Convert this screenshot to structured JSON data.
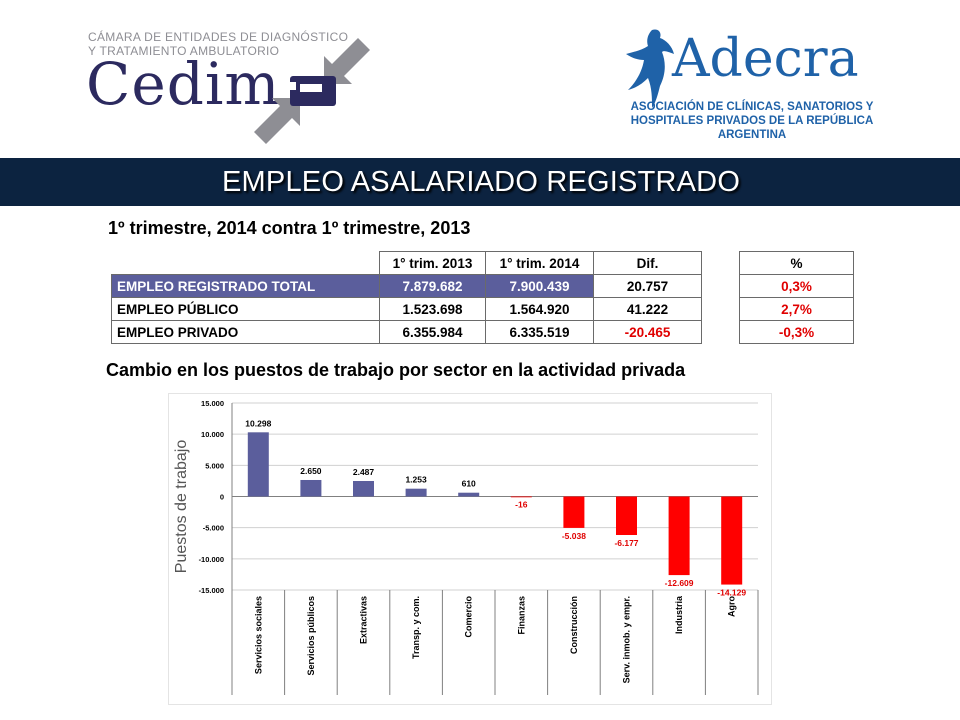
{
  "logos": {
    "cedim": {
      "line1": "CÁMARA DE ENTIDADES DE DIAGNÓSTICO",
      "line2": "Y TRATAMIENTO AMBULATORIO",
      "name": "Cedim"
    },
    "adecra": {
      "name": "Adecra",
      "line1": "ASOCIACIÓN DE CLÍNICAS, SANATORIOS Y",
      "line2": "HOSPITALES PRIVADOS DE LA REPÚBLICA ARGENTINA"
    }
  },
  "title": "EMPLEO ASALARIADO REGISTRADO",
  "subtitle": "1º trimestre, 2014 contra 1º trimestre, 2013",
  "table": {
    "headers": [
      "1° trim. 2013",
      "1° trim. 2014",
      "Dif."
    ],
    "pct_header": "%",
    "rows": [
      {
        "label": "EMPLEO REGISTRADO TOTAL",
        "v2013": "7.879.682",
        "v2014": "7.900.439",
        "dif": "20.757",
        "pct": "0,3%"
      },
      {
        "label": "EMPLEO PÚBLICO",
        "v2013": "1.523.698",
        "v2014": "1.564.920",
        "dif": "41.222",
        "pct": "2,7%"
      },
      {
        "label": "EMPLEO PRIVADO",
        "v2013": "6.355.984",
        "v2014": "6.335.519",
        "dif": "-20.465",
        "pct": "-0,3%"
      }
    ]
  },
  "chart_title": "Cambio en los puestos de trabajo por sector en la actividad privada",
  "chart_data": {
    "type": "bar",
    "ylabel": "Puestos de trabajo",
    "xlabel": "",
    "ylim": [
      -15000,
      15000
    ],
    "yticks": [
      15000,
      10000,
      5000,
      0,
      -5000,
      -10000,
      -15000
    ],
    "ytick_labels": [
      "15.000",
      "10.000",
      "5.000",
      "0",
      "-5.000",
      "-10.000",
      "-15.000"
    ],
    "grid": true,
    "categories": [
      "Servicios sociales",
      "Servicios públicos",
      "Extractivas",
      "Transp. y com.",
      "Comercio",
      "Finanzas",
      "Construcción",
      "Serv. inmob. y empr.",
      "Industria",
      "Agro"
    ],
    "values": [
      10298,
      2650,
      2487,
      1253,
      610,
      -16,
      -5038,
      -6177,
      -12609,
      -14129
    ],
    "value_labels": [
      "10.298",
      "2.650",
      "2.487",
      "1.253",
      "610",
      "-16",
      "-5.038",
      "-6.177",
      "-12.609",
      "-14.129"
    ],
    "colors": {
      "positive": "#5b5e9c",
      "negative": "#ff0000",
      "positive_label": "#000000",
      "negative_label": "#e00000",
      "grid": "#d0d0d0"
    }
  }
}
